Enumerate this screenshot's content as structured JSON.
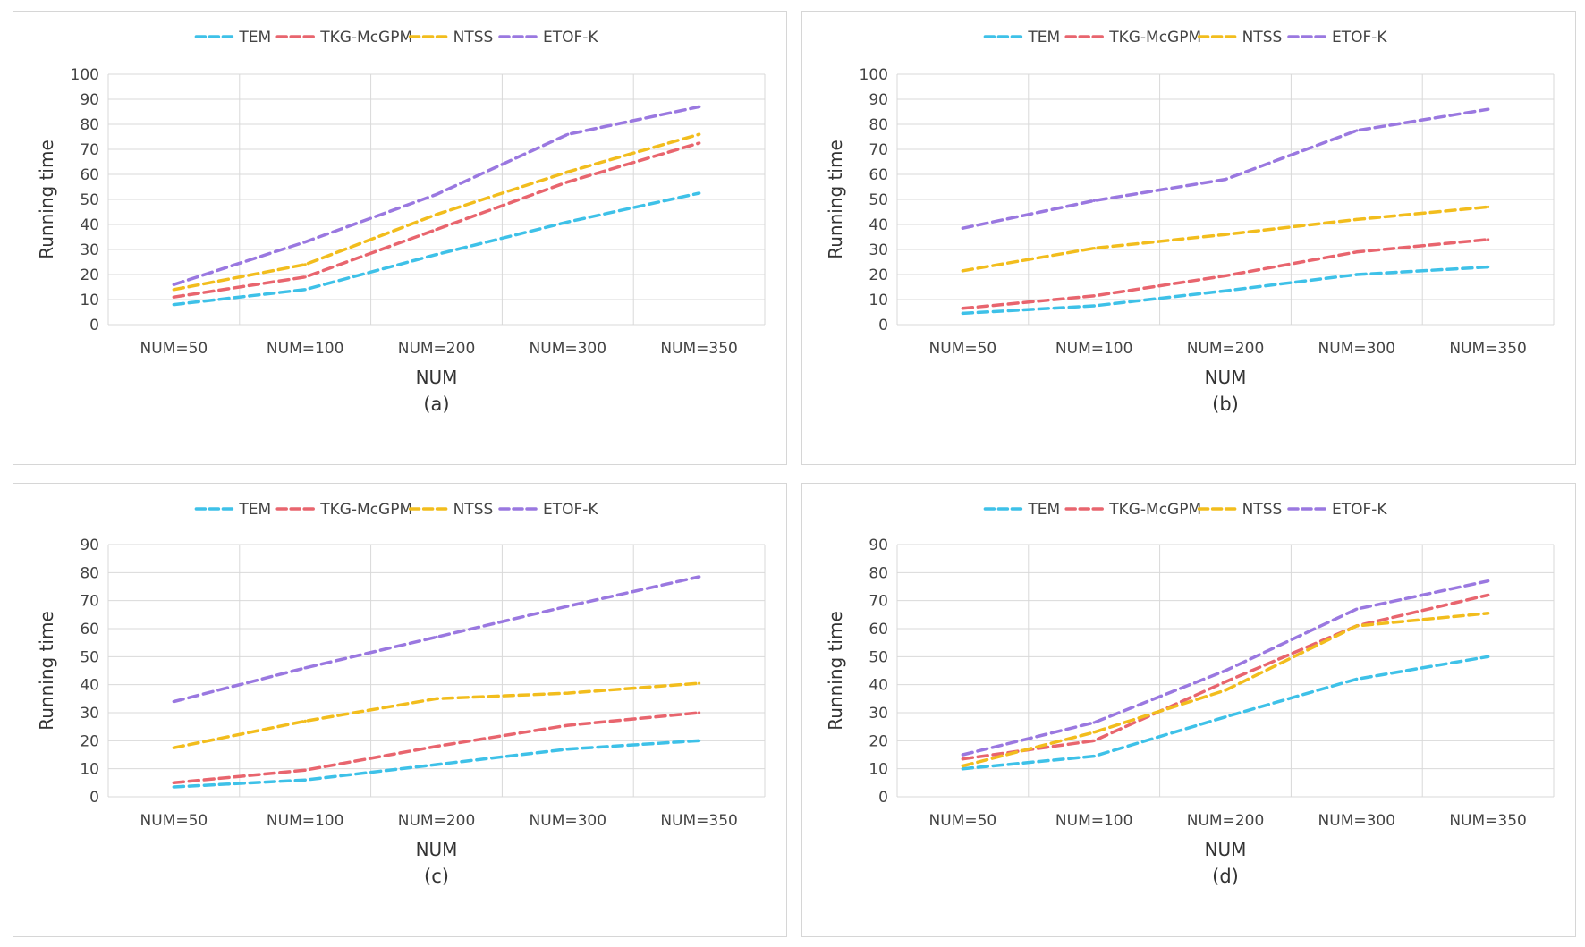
{
  "chart_data": [
    {
      "id": "a",
      "type": "line",
      "panel_label": "(a)",
      "xlabel": "NUM",
      "ylabel": "Running time",
      "categories": [
        "NUM=50",
        "NUM=100",
        "NUM=200",
        "NUM=300",
        "NUM=350"
      ],
      "ylim": [
        0,
        100
      ],
      "yticks": [
        "0",
        "10",
        "20",
        "30",
        "40",
        "50",
        "60",
        "70",
        "80",
        "90",
        "100"
      ],
      "grid": true,
      "legend_position": "top",
      "series": [
        {
          "name": "TEM",
          "color": "#3ec1e8",
          "values": [
            8,
            14,
            28,
            41,
            52.5
          ]
        },
        {
          "name": "TKG-McGPM",
          "color": "#e8656e",
          "values": [
            11,
            19,
            38,
            57,
            72.5
          ]
        },
        {
          "name": "NTSS",
          "color": "#f2bd1d",
          "values": [
            14,
            24,
            44,
            61,
            76
          ]
        },
        {
          "name": "ETOF-K",
          "color": "#9a78e0",
          "values": [
            16,
            33,
            52,
            76,
            87
          ]
        }
      ]
    },
    {
      "id": "b",
      "type": "line",
      "panel_label": "(b)",
      "xlabel": "NUM",
      "ylabel": "Running time",
      "categories": [
        "NUM=50",
        "NUM=100",
        "NUM=200",
        "NUM=300",
        "NUM=350"
      ],
      "ylim": [
        0,
        100
      ],
      "yticks": [
        "0",
        "10",
        "20",
        "30",
        "40",
        "50",
        "60",
        "70",
        "80",
        "90",
        "100"
      ],
      "grid": true,
      "legend_position": "top",
      "series": [
        {
          "name": "TEM",
          "color": "#3ec1e8",
          "values": [
            4.5,
            7.5,
            13.5,
            20,
            23
          ]
        },
        {
          "name": "TKG-McGPM",
          "color": "#e8656e",
          "values": [
            6.5,
            11.5,
            19.5,
            29,
            34
          ]
        },
        {
          "name": "NTSS",
          "color": "#f2bd1d",
          "values": [
            21.5,
            30.5,
            36,
            42,
            47
          ]
        },
        {
          "name": "ETOF-K",
          "color": "#9a78e0",
          "values": [
            38.5,
            49.5,
            58,
            77.5,
            86
          ]
        }
      ]
    },
    {
      "id": "c",
      "type": "line",
      "panel_label": "(c)",
      "xlabel": "NUM",
      "ylabel": "Running time",
      "categories": [
        "NUM=50",
        "NUM=100",
        "NUM=200",
        "NUM=300",
        "NUM=350"
      ],
      "ylim": [
        0,
        90
      ],
      "yticks": [
        "0",
        "10",
        "20",
        "30",
        "40",
        "50",
        "60",
        "70",
        "80",
        "90"
      ],
      "grid": true,
      "legend_position": "top",
      "series": [
        {
          "name": "TEM",
          "color": "#3ec1e8",
          "values": [
            3.5,
            6,
            11.5,
            17,
            20
          ]
        },
        {
          "name": "TKG-McGPM",
          "color": "#e8656e",
          "values": [
            5,
            9.5,
            18,
            25.5,
            30
          ]
        },
        {
          "name": "NTSS",
          "color": "#f2bd1d",
          "values": [
            17.5,
            27,
            35,
            37,
            40.5
          ]
        },
        {
          "name": "ETOF-K",
          "color": "#9a78e0",
          "values": [
            34,
            46,
            57,
            68,
            78.5
          ]
        }
      ]
    },
    {
      "id": "d",
      "type": "line",
      "panel_label": "(d)",
      "xlabel": "NUM",
      "ylabel": "Running time",
      "categories": [
        "NUM=50",
        "NUM=100",
        "NUM=200",
        "NUM=300",
        "NUM=350"
      ],
      "ylim": [
        0,
        90
      ],
      "yticks": [
        "0",
        "10",
        "20",
        "30",
        "40",
        "50",
        "60",
        "70",
        "80",
        "90"
      ],
      "grid": true,
      "legend_position": "top",
      "series": [
        {
          "name": "TEM",
          "color": "#3ec1e8",
          "values": [
            10,
            14.5,
            28.5,
            42,
            50
          ]
        },
        {
          "name": "TKG-McGPM",
          "color": "#e8656e",
          "values": [
            13.5,
            20,
            41,
            61,
            72
          ]
        },
        {
          "name": "NTSS",
          "color": "#f2bd1d",
          "values": [
            11,
            23,
            38,
            61,
            65.5
          ]
        },
        {
          "name": "ETOF-K",
          "color": "#9a78e0",
          "values": [
            15,
            26.5,
            45,
            67,
            77
          ]
        }
      ]
    }
  ]
}
